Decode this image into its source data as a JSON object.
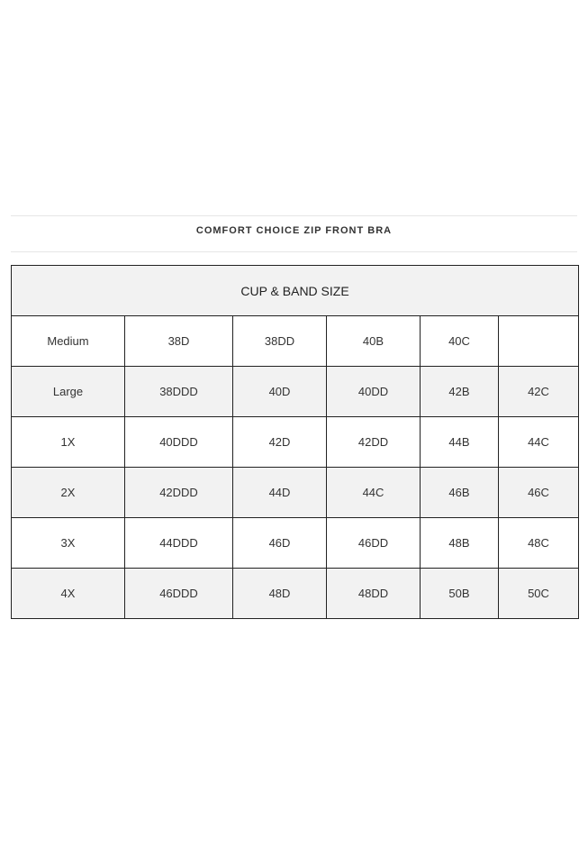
{
  "title": "COMFORT CHOICE ZIP FRONT BRA",
  "table": {
    "header": "CUP & BAND SIZE",
    "rows": [
      [
        "Medium",
        "38D",
        "38DD",
        "40B",
        "40C",
        ""
      ],
      [
        "Large",
        "38DDD",
        "40D",
        "40DD",
        "42B",
        "42C"
      ],
      [
        "1X",
        "40DDD",
        "42D",
        "42DD",
        "44B",
        "44C"
      ],
      [
        "2X",
        "42DDD",
        "44D",
        "44C",
        "46B",
        "46C"
      ],
      [
        "3X",
        "44DDD",
        "46D",
        "46DD",
        "48B",
        "48C"
      ],
      [
        "4X",
        "46DDD",
        "48D",
        "48DD",
        "50B",
        "50C"
      ]
    ]
  }
}
